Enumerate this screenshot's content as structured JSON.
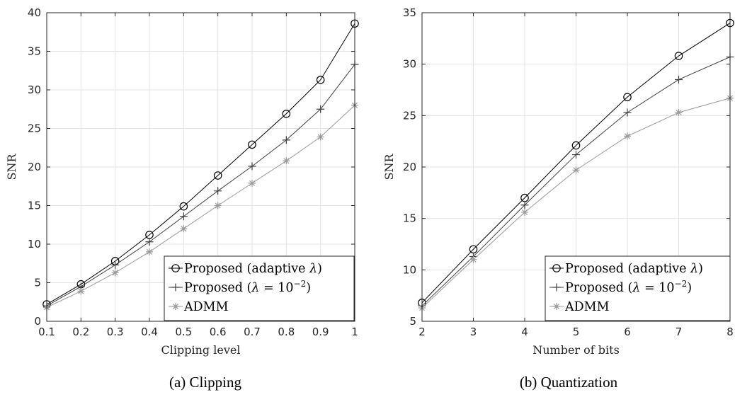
{
  "chart_data": [
    {
      "type": "line",
      "caption": "(a) Clipping",
      "xlabel": "Clipping level",
      "ylabel": "SNR",
      "x": [
        0.1,
        0.2,
        0.3,
        0.4,
        0.5,
        0.6,
        0.7,
        0.8,
        0.9,
        1
      ],
      "xticks": [
        "0.1",
        "0.2",
        "0.3",
        "0.4",
        "0.5",
        "0.6",
        "0.7",
        "0.8",
        "0.9",
        "1"
      ],
      "yticks": [
        "0",
        "5",
        "10",
        "15",
        "20",
        "25",
        "30",
        "35",
        "40"
      ],
      "xlim": [
        0.1,
        1
      ],
      "ylim": [
        0,
        40
      ],
      "grid": true,
      "legend_position": "bottom-right",
      "series": [
        {
          "name": "Proposed (adaptive λ)",
          "marker": "circle",
          "color": "#000000",
          "values": [
            2.2,
            4.8,
            7.8,
            11.2,
            14.9,
            18.9,
            22.9,
            26.9,
            31.3,
            38.6
          ]
        },
        {
          "name": "Proposed (λ = 10−2)",
          "marker": "plus",
          "color": "#404040",
          "values": [
            2.0,
            4.5,
            7.3,
            10.3,
            13.6,
            16.9,
            20.1,
            23.5,
            27.5,
            33.3
          ]
        },
        {
          "name": "ADMM",
          "marker": "asterisk",
          "color": "#9a9a9a",
          "values": [
            1.8,
            3.9,
            6.3,
            9.0,
            12.0,
            15.0,
            17.9,
            20.8,
            23.9,
            28.0
          ]
        }
      ]
    },
    {
      "type": "line",
      "caption": "(b) Quantization",
      "xlabel": "Number of bits",
      "ylabel": "SNR",
      "x": [
        2,
        3,
        4,
        5,
        6,
        7,
        8
      ],
      "xticks": [
        "2",
        "3",
        "4",
        "5",
        "6",
        "7",
        "8"
      ],
      "yticks": [
        "5",
        "10",
        "15",
        "20",
        "25",
        "30",
        "35"
      ],
      "xlim": [
        2,
        8
      ],
      "ylim": [
        5,
        35
      ],
      "grid": true,
      "legend_position": "bottom-right",
      "series": [
        {
          "name": "Proposed (adaptive λ)",
          "marker": "circle",
          "color": "#000000",
          "values": [
            6.8,
            12.0,
            17.0,
            22.1,
            26.8,
            30.8,
            34.0
          ]
        },
        {
          "name": "Proposed (λ = 10−2)",
          "marker": "plus",
          "color": "#404040",
          "values": [
            6.5,
            11.3,
            16.3,
            21.2,
            25.3,
            28.5,
            30.7
          ]
        },
        {
          "name": "ADMM",
          "marker": "asterisk",
          "color": "#9a9a9a",
          "values": [
            6.3,
            11.0,
            15.6,
            19.7,
            23.0,
            25.3,
            26.7
          ]
        }
      ]
    }
  ]
}
